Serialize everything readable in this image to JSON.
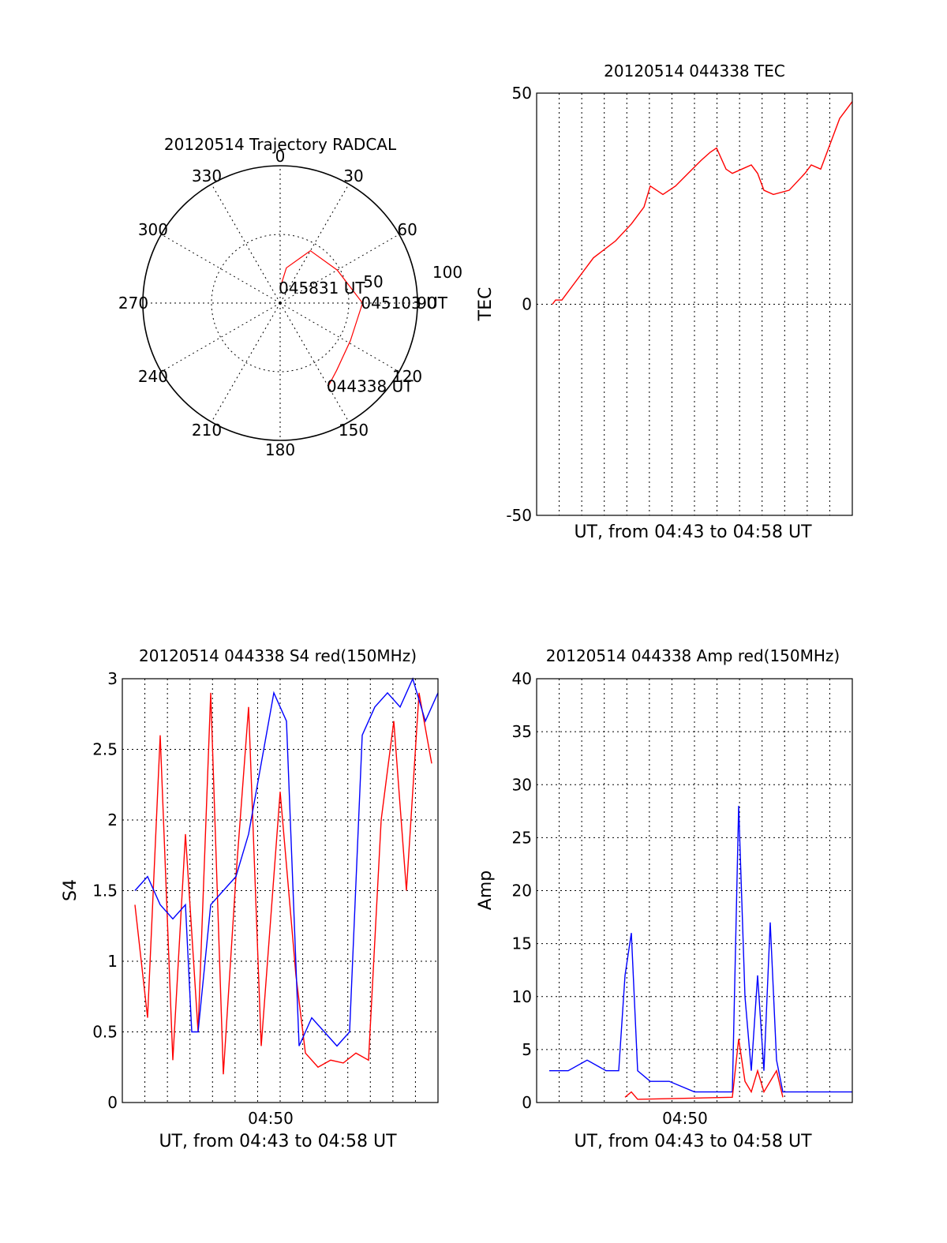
{
  "colors": {
    "red": "#ff0000",
    "blue": "#0000ff",
    "grid": "#000000",
    "background": "#ffffff"
  },
  "chart_data": [
    {
      "type": "polar",
      "title": "20120514 Trajectory RADCAL",
      "azimuth_labels": [
        "0",
        "30",
        "60",
        "90",
        "120",
        "150",
        "180",
        "210",
        "240",
        "270",
        "300",
        "330"
      ],
      "radial_labels": [
        "50",
        "100"
      ],
      "rmax": 100,
      "trajectory": [
        {
          "az": 0,
          "el": 11
        },
        {
          "az": 10,
          "el": 26
        },
        {
          "az": 30,
          "el": 44
        },
        {
          "az": 60,
          "el": 48
        },
        {
          "az": 90,
          "el": 60
        },
        {
          "az": 118,
          "el": 58
        },
        {
          "az": 140,
          "el": 64
        },
        {
          "az": 150,
          "el": 70
        }
      ],
      "annotations": [
        {
          "text": "045831 UT",
          "az": 0,
          "el": 11
        },
        {
          "text": "045103 UT",
          "az": 90,
          "el": 60
        },
        {
          "text": "044338 UT",
          "az": 150,
          "el": 70
        }
      ]
    },
    {
      "type": "line",
      "title": "20120514 044338 TEC",
      "xlabel": "UT, from 04:43 to 04:58 UT",
      "ylabel": "TEC",
      "ylim": [
        -50,
        50
      ],
      "yticks": [
        "50",
        "0",
        "-50"
      ],
      "grid": true,
      "series": [
        {
          "color": "red",
          "x": [
            0.05,
            0.06,
            0.08,
            0.12,
            0.18,
            0.25,
            0.3,
            0.34,
            0.36,
            0.4,
            0.44,
            0.48,
            0.52,
            0.55,
            0.57,
            0.6,
            0.62,
            0.65,
            0.68,
            0.7,
            0.72,
            0.75,
            0.8,
            0.85,
            0.87,
            0.9,
            0.93,
            0.96,
            0.98,
            1.0
          ],
          "y": [
            0,
            1,
            1,
            5,
            11,
            15,
            19,
            23,
            28,
            26,
            28,
            31,
            34,
            36,
            37,
            32,
            31,
            32,
            33,
            31,
            27,
            26,
            27,
            31,
            33,
            32,
            38,
            44,
            46,
            48
          ]
        }
      ]
    },
    {
      "type": "line",
      "title": "20120514 044338 S4 red(150MHz)",
      "xlabel": "UT, from 04:43 to 04:58 UT",
      "ylabel": "S4",
      "ylim": [
        0,
        3
      ],
      "yticks": [
        "0",
        "0.5",
        "1",
        "1.5",
        "2",
        "2.5",
        "3"
      ],
      "xticks": [
        {
          "label": "04:50",
          "at": 0.47
        }
      ],
      "grid": true,
      "series": [
        {
          "color": "red",
          "x": [
            0.04,
            0.08,
            0.12,
            0.16,
            0.2,
            0.24,
            0.28,
            0.32,
            0.36,
            0.4,
            0.44,
            0.5,
            0.55,
            0.58,
            0.62,
            0.66,
            0.7,
            0.74,
            0.78,
            0.82,
            0.86,
            0.9,
            0.94,
            0.98
          ],
          "y": [
            1.4,
            0.6,
            2.6,
            0.3,
            1.9,
            0.5,
            2.9,
            0.2,
            1.6,
            2.8,
            0.4,
            2.2,
            0.9,
            0.35,
            0.25,
            0.3,
            0.28,
            0.35,
            0.3,
            2.0,
            2.7,
            1.5,
            2.9,
            2.4
          ]
        },
        {
          "color": "blue",
          "x": [
            0.04,
            0.08,
            0.12,
            0.16,
            0.2,
            0.22,
            0.24,
            0.28,
            0.32,
            0.36,
            0.4,
            0.44,
            0.48,
            0.52,
            0.56,
            0.6,
            0.64,
            0.68,
            0.72,
            0.76,
            0.8,
            0.84,
            0.88,
            0.92,
            0.96,
            1.0
          ],
          "y": [
            1.5,
            1.6,
            1.4,
            1.3,
            1.4,
            0.5,
            0.5,
            1.4,
            1.5,
            1.6,
            1.9,
            2.4,
            2.9,
            2.7,
            0.4,
            0.6,
            0.5,
            0.4,
            0.5,
            2.6,
            2.8,
            2.9,
            2.8,
            3.0,
            2.7,
            2.9
          ]
        }
      ]
    },
    {
      "type": "line",
      "title": "20120514 044338 Amp red(150MHz)",
      "xlabel": "UT, from 04:43 to 04:58 UT",
      "ylabel": "Amp",
      "ylim": [
        0,
        40
      ],
      "yticks": [
        "0",
        "5",
        "10",
        "15",
        "20",
        "25",
        "30",
        "35",
        "40"
      ],
      "xticks": [
        {
          "label": "04:50",
          "at": 0.47
        }
      ],
      "grid": true,
      "series": [
        {
          "color": "blue",
          "x": [
            0.04,
            0.1,
            0.16,
            0.22,
            0.26,
            0.28,
            0.3,
            0.32,
            0.36,
            0.42,
            0.5,
            0.58,
            0.62,
            0.64,
            0.66,
            0.68,
            0.7,
            0.72,
            0.74,
            0.76,
            0.78,
            0.8,
            0.84,
            0.9,
            0.96,
            1.0
          ],
          "y": [
            3,
            3,
            4,
            3,
            3,
            12,
            16,
            3,
            2,
            2,
            1,
            1,
            1,
            28,
            10,
            3,
            12,
            3,
            17,
            4,
            1,
            1,
            1,
            1,
            1,
            1
          ]
        },
        {
          "color": "red",
          "x": [
            0.28,
            0.3,
            0.32,
            0.62,
            0.64,
            0.66,
            0.68,
            0.7,
            0.72,
            0.74,
            0.76,
            0.78
          ],
          "y": [
            0.5,
            1,
            0.3,
            0.5,
            6,
            2,
            1,
            3,
            1,
            2,
            3,
            0.5
          ]
        }
      ]
    }
  ]
}
